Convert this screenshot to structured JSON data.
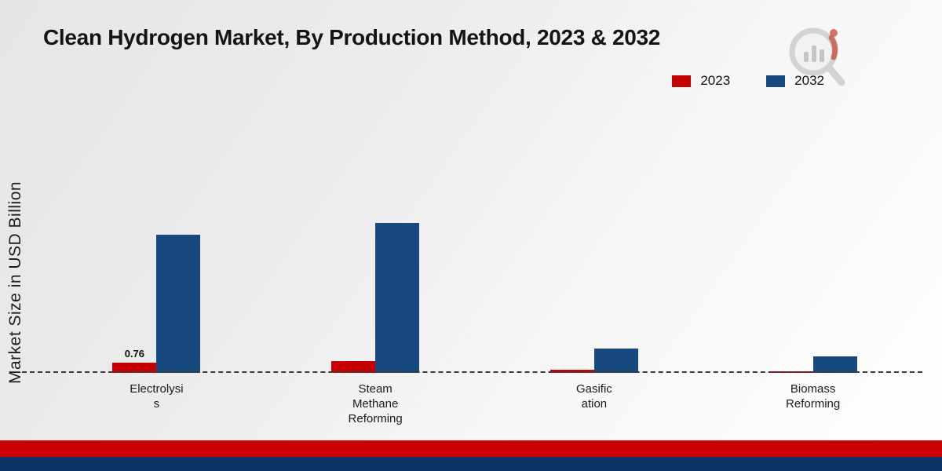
{
  "title": "Clean Hydrogen Market, By Production Method, 2023 & 2032",
  "ylabel": "Market Size in USD Billion",
  "legend": [
    {
      "label": "2023",
      "color": "#c40000"
    },
    {
      "label": "2032",
      "color": "#17497f"
    }
  ],
  "footer": {
    "red_stripe_color": "#cc0000",
    "navy_stripe_color": "#0d3563"
  },
  "chart_data": {
    "type": "bar",
    "title": "Clean Hydrogen Market, By Production Method, 2023 & 2032",
    "xlabel": "",
    "ylabel": "Market Size in USD Billion",
    "ylim": [
      0,
      12
    ],
    "grid": false,
    "legend_position": "top-right",
    "categories": [
      "Electrolysis",
      "Steam Methane Reforming",
      "Gasification",
      "Biomass Reforming"
    ],
    "category_display": [
      [
        "Electrolysi",
        "s"
      ],
      [
        "Steam",
        "Methane",
        "Reforming"
      ],
      [
        "Gasific",
        "ation"
      ],
      [
        "Biomass",
        "Reforming"
      ]
    ],
    "series": [
      {
        "name": "2023",
        "color": "#c40000",
        "values": [
          0.76,
          0.9,
          0.22,
          0.12
        ]
      },
      {
        "name": "2032",
        "color": "#17497f",
        "values": [
          10.3,
          11.2,
          1.8,
          1.2
        ]
      }
    ],
    "data_labels": [
      {
        "series": "2023",
        "category": "Electrolysis",
        "text": "0.76"
      }
    ]
  }
}
